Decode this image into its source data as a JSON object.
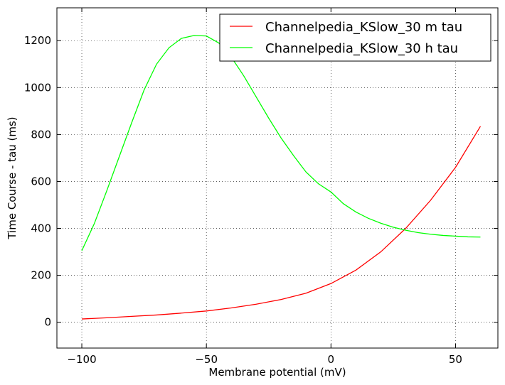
{
  "chart_data": {
    "type": "line",
    "title": "",
    "xlabel": "Membrane potential (mV)",
    "ylabel": "Time Course - tau (ms)",
    "xlim": [
      -110,
      67
    ],
    "ylim": [
      -110,
      1340
    ],
    "x_ticks": [
      -100,
      -50,
      0,
      50
    ],
    "x_tick_labels": [
      "−100",
      "−50",
      "0",
      "50"
    ],
    "y_ticks": [
      0,
      200,
      400,
      600,
      800,
      1000,
      1200
    ],
    "y_tick_labels": [
      "0",
      "200",
      "400",
      "600",
      "800",
      "1000",
      "1200"
    ],
    "grid": true,
    "legend_position": "top-right",
    "series": [
      {
        "name": "Channelpedia_KSlow_30 m tau",
        "color": "#ff0000",
        "x": [
          -100,
          -90,
          -80,
          -70,
          -60,
          -50,
          -40,
          -30,
          -20,
          -10,
          0,
          10,
          20,
          30,
          40,
          50,
          60
        ],
        "y": [
          14,
          19,
          25,
          31,
          39,
          48,
          61,
          77,
          97,
          124,
          165,
          222,
          300,
          400,
          520,
          660,
          835
        ]
      },
      {
        "name": "Channelpedia_KSlow_30 h tau",
        "color": "#00ff00",
        "x": [
          -100,
          -95,
          -90,
          -85,
          -80,
          -75,
          -70,
          -65,
          -60,
          -55,
          -50,
          -45,
          -40,
          -35,
          -30,
          -25,
          -20,
          -15,
          -10,
          -5,
          0,
          5,
          10,
          15,
          20,
          25,
          30,
          35,
          40,
          45,
          50,
          55,
          60
        ],
        "y": [
          305,
          420,
          560,
          705,
          850,
          990,
          1100,
          1170,
          1210,
          1222,
          1220,
          1190,
          1130,
          1050,
          960,
          870,
          785,
          710,
          640,
          590,
          555,
          505,
          470,
          443,
          422,
          405,
          392,
          382,
          375,
          370,
          367,
          364,
          363
        ]
      }
    ]
  }
}
